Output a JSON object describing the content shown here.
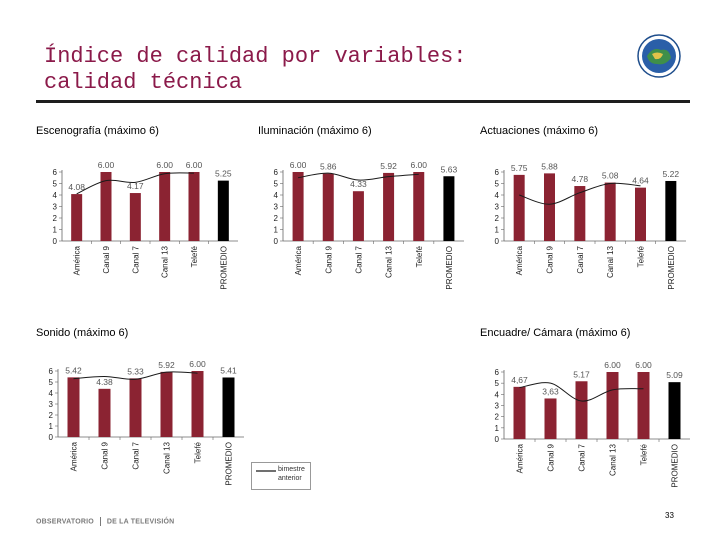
{
  "slide": {
    "title_line1": "Índice de calidad por variables:",
    "title_line2": "calidad técnica",
    "legend_label": "bimestre anterior",
    "footer_left": "OBSERVATORIO",
    "footer_right": "DE LA TELEVISIÓN",
    "page_number": "33"
  },
  "colors": {
    "bar": "#8b2332",
    "average_bar": "#000000",
    "line": "#1a1a1a",
    "title": "#8b1a4a",
    "value_label": "#555555"
  },
  "chart_data": [
    {
      "type": "bar",
      "title": "Escenografía (máximo 6)",
      "categories": [
        "América",
        "Canal 9",
        "Canal 7",
        "Canal 13",
        "Telefé",
        "PROMEDIO"
      ],
      "values": [
        4.08,
        6.0,
        4.17,
        6.0,
        6.0,
        5.25
      ],
      "labels": [
        "4.08",
        "6.00",
        "4.17",
        "6.00",
        "6.00",
        "5.25"
      ],
      "previous_bimester": [
        4.1,
        5.25,
        5.1,
        5.85,
        5.9
      ],
      "ylim": [
        0,
        6
      ],
      "yticks": [
        0,
        1,
        2,
        3,
        4,
        5,
        6
      ]
    },
    {
      "type": "bar",
      "title": "Iluminación (máximo 6)",
      "categories": [
        "América",
        "Canal 9",
        "Canal 7",
        "Canal 13",
        "Telefé",
        "PROMEDIO"
      ],
      "values": [
        6.0,
        5.86,
        4.33,
        5.92,
        6.0,
        5.63
      ],
      "labels": [
        "6.00",
        "5.86",
        "4.33",
        "5.92",
        "6.00",
        "5.63"
      ],
      "previous_bimester": [
        5.5,
        5.9,
        5.3,
        5.6,
        5.8
      ],
      "ylim": [
        0,
        6
      ],
      "yticks": [
        0,
        1,
        2,
        3,
        4,
        5,
        6
      ]
    },
    {
      "type": "bar",
      "title": "Actuaciones (máximo 6)",
      "categories": [
        "América",
        "Canal 9",
        "Canal 7",
        "Canal 13",
        "Telefé",
        "PROMEDIO"
      ],
      "values": [
        5.75,
        5.88,
        4.78,
        5.08,
        4.64,
        5.22
      ],
      "labels": [
        "5.75",
        "5.88",
        "4.78",
        "5.08",
        "4.64",
        "5.22"
      ],
      "previous_bimester": [
        4.0,
        3.2,
        4.2,
        5.0,
        4.8
      ],
      "ylim": [
        0,
        6
      ],
      "yticks": [
        0,
        1,
        2,
        3,
        4,
        5,
        6
      ]
    },
    {
      "type": "bar",
      "title": "Sonido (máximo 6)",
      "categories": [
        "América",
        "Canal 9",
        "Canal 7",
        "Canal 13",
        "Telefé",
        "PROMEDIO"
      ],
      "values": [
        5.42,
        4.38,
        5.33,
        5.92,
        6.0,
        5.41
      ],
      "labels": [
        "5.42",
        "4.38",
        "5.33",
        "5.92",
        "6.00",
        "5.41"
      ],
      "previous_bimester": [
        5.3,
        5.5,
        5.25,
        5.9,
        5.8
      ],
      "ylim": [
        0,
        6
      ],
      "yticks": [
        0,
        1,
        2,
        3,
        4,
        5,
        6
      ]
    },
    {
      "type": "bar",
      "title": "Encuadre/ Cámara (máximo 6)",
      "categories": [
        "América",
        "Canal 9",
        "Canal 7",
        "Canal 13",
        "Telefé",
        "PROMEDIO"
      ],
      "values": [
        4.67,
        3.63,
        5.17,
        6.0,
        6.0,
        5.09
      ],
      "labels": [
        "4,67",
        "3,63",
        "5.17",
        "6.00",
        "6.00",
        "5.09"
      ],
      "previous_bimester": [
        4.6,
        5.0,
        3.4,
        4.4,
        4.5
      ],
      "ylim": [
        0,
        6
      ],
      "yticks": [
        0,
        1,
        2,
        3,
        4,
        5,
        6
      ]
    }
  ]
}
